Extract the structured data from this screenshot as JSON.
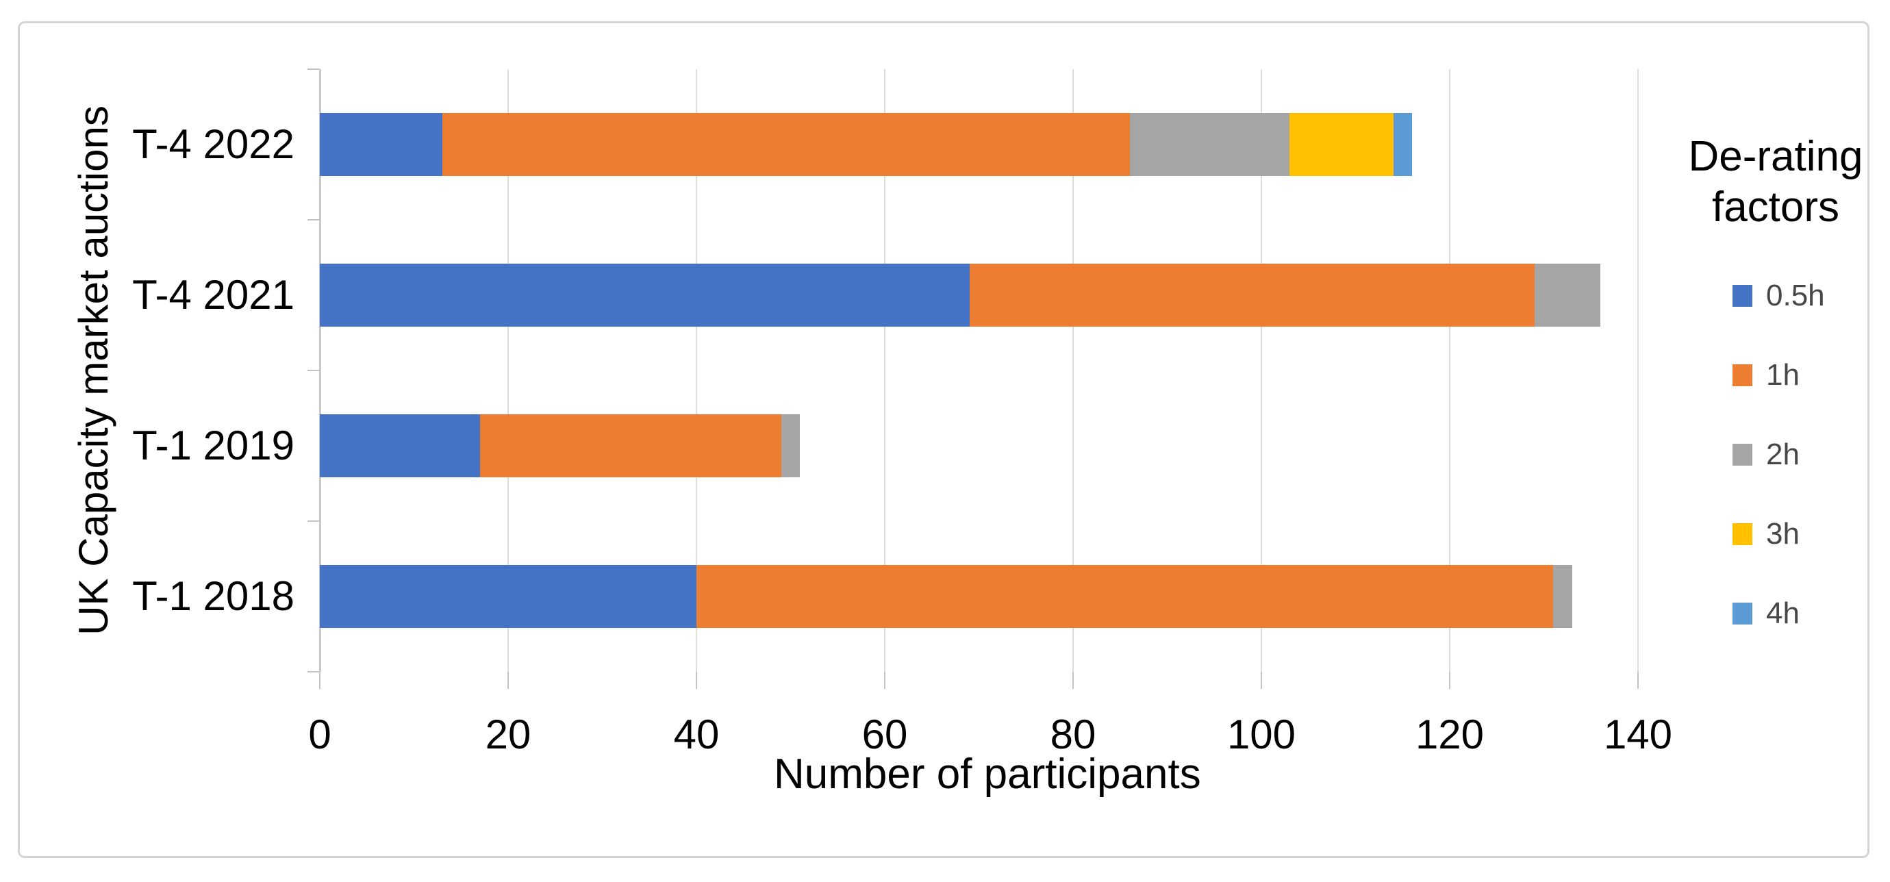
{
  "chart_data": {
    "type": "bar",
    "orientation": "horizontal-stacked",
    "xlabel": "Number of participants",
    "ylabel": "UK Capacity market auctions",
    "categories": [
      "T-4 2022",
      "T-4 2021",
      "T-1 2019",
      "T-1 2018"
    ],
    "series": [
      {
        "name": "0.5h",
        "color": "#4472C4",
        "values": [
          13,
          69,
          17,
          40
        ]
      },
      {
        "name": "1h",
        "color": "#ED7D31",
        "values": [
          73,
          60,
          32,
          91
        ]
      },
      {
        "name": "2h",
        "color": "#A5A5A5",
        "values": [
          17,
          7,
          2,
          2
        ]
      },
      {
        "name": "3h",
        "color": "#FFC000",
        "values": [
          11,
          0,
          0,
          0
        ]
      },
      {
        "name": "4h",
        "color": "#5B9BD5",
        "values": [
          2,
          0,
          0,
          0
        ]
      }
    ],
    "xlim": [
      0,
      140
    ],
    "xticks": [
      0,
      20,
      40,
      60,
      80,
      100,
      120,
      140
    ],
    "grid": "vertical-major",
    "legend": {
      "title": "De-rating factors",
      "position": "right"
    }
  }
}
